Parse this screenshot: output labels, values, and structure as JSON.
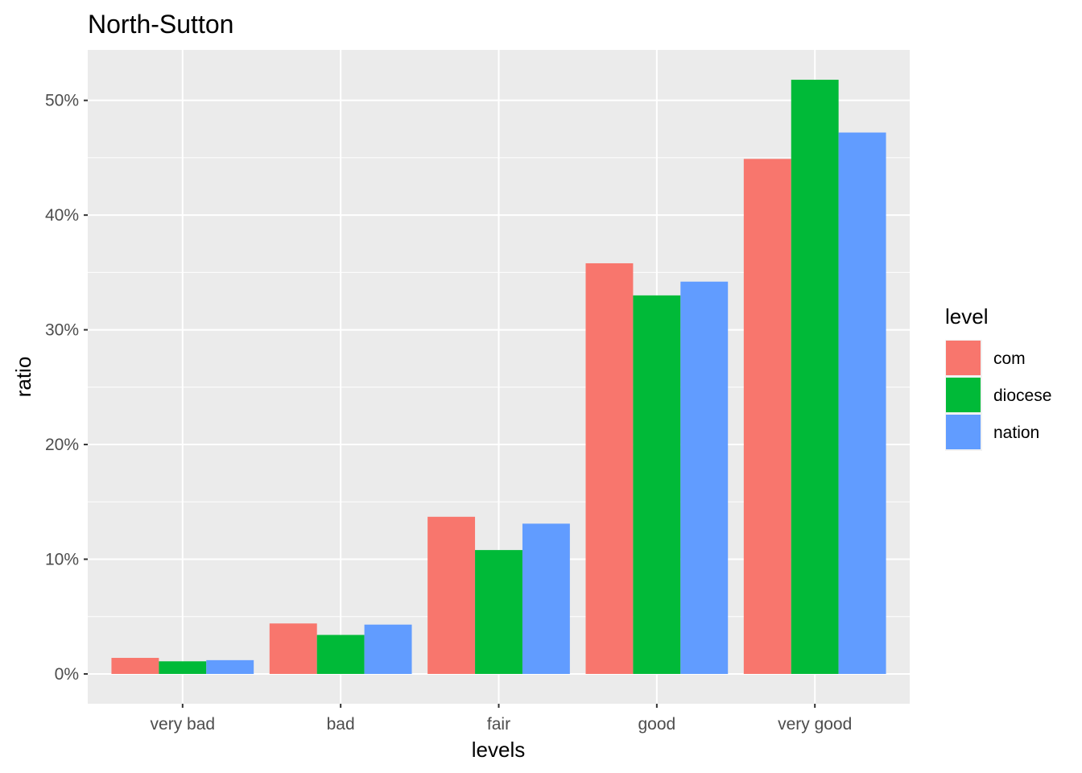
{
  "chart_data": {
    "type": "bar",
    "title": "North-Sutton",
    "xlabel": "levels",
    "ylabel": "ratio",
    "categories": [
      "very bad",
      "bad",
      "fair",
      "good",
      "very good"
    ],
    "series": [
      {
        "name": "com",
        "color": "#F8766D",
        "values": [
          1.4,
          4.4,
          13.7,
          35.8,
          44.9
        ]
      },
      {
        "name": "diocese",
        "color": "#00BA38",
        "values": [
          1.1,
          3.4,
          10.8,
          33.0,
          51.8
        ]
      },
      {
        "name": "nation",
        "color": "#619CFF",
        "values": [
          1.2,
          4.3,
          13.1,
          34.2,
          47.2
        ]
      }
    ],
    "yticks": [
      0,
      10,
      20,
      30,
      40,
      50
    ],
    "ytick_labels": [
      "0%",
      "10%",
      "20%",
      "30%",
      "40%",
      "50%"
    ],
    "ylim": [
      -2.6,
      54.4
    ],
    "grid": true,
    "panel_background": "#EBEBEB",
    "legend": {
      "title": "level",
      "position": "right"
    }
  }
}
